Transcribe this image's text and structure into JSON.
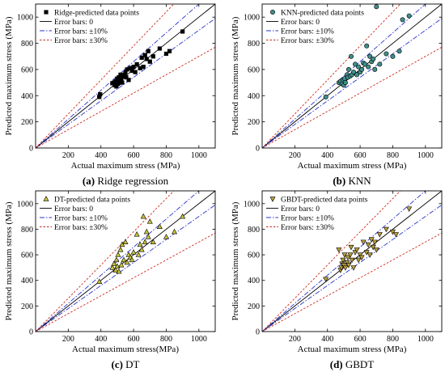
{
  "colors": {
    "scatter_fill": "#000000",
    "knn_fill": "#3f8f8a",
    "dt_fill": "#c8c43a",
    "gbdt_fill": "#b89e38",
    "line_exact": "#000000",
    "line_10": "#2b35c8",
    "line_30": "#cc2a1e"
  },
  "chart_data": [
    {
      "type": "scatter",
      "caption_letter": "(a)",
      "caption_text": " Ridge regression",
      "xlabel": "Actual maximum stress (MPa)",
      "ylabel": "Predicted maximum stress (MPa)",
      "xlim": [
        0,
        1100
      ],
      "ylim": [
        0,
        1100
      ],
      "xticks": [
        200,
        400,
        600,
        800,
        1000
      ],
      "yticks": [
        0,
        200,
        400,
        600,
        800,
        1000
      ],
      "marker": "square",
      "legend": [
        "Ridge-predicted data points",
        "Error bars:  0",
        "Error bars:  ±10%",
        "Error bars:  ±30%"
      ],
      "x": [
        390,
        395,
        470,
        480,
        485,
        490,
        495,
        500,
        500,
        505,
        510,
        515,
        520,
        520,
        525,
        530,
        540,
        545,
        550,
        555,
        560,
        570,
        580,
        590,
        600,
        610,
        620,
        640,
        650,
        660,
        670,
        680,
        690,
        700,
        720,
        760,
        800,
        820,
        900
      ],
      "y": [
        390,
        410,
        495,
        500,
        480,
        510,
        470,
        520,
        530,
        490,
        540,
        500,
        515,
        560,
        530,
        500,
        545,
        560,
        580,
        540,
        600,
        520,
        610,
        590,
        620,
        580,
        640,
        610,
        690,
        620,
        710,
        680,
        740,
        660,
        700,
        760,
        720,
        740,
        890
      ]
    },
    {
      "type": "scatter",
      "caption_letter": "(b)",
      "caption_text": " KNN",
      "xlabel": "Actual maximum stress (MPa)",
      "ylabel": "Predicted maximum stress (MPa)",
      "xlim": [
        0,
        1100
      ],
      "ylim": [
        0,
        1100
      ],
      "xticks": [
        200,
        400,
        600,
        800,
        1000
      ],
      "yticks": [
        0,
        200,
        400,
        600,
        800,
        1000
      ],
      "marker": "circle",
      "legend": [
        "KNN-predicted data points",
        "Error bars:  0",
        "Error bars:  ±10%",
        "Error bars:  ±30%"
      ],
      "x": [
        390,
        470,
        480,
        490,
        495,
        500,
        505,
        510,
        520,
        525,
        530,
        540,
        545,
        550,
        560,
        570,
        580,
        590,
        600,
        610,
        620,
        630,
        640,
        650,
        660,
        670,
        680,
        690,
        700,
        720,
        760,
        800,
        840,
        860,
        900
      ],
      "y": [
        390,
        500,
        510,
        490,
        520,
        480,
        530,
        500,
        560,
        540,
        600,
        550,
        700,
        560,
        580,
        640,
        560,
        620,
        580,
        600,
        650,
        640,
        780,
        620,
        700,
        660,
        680,
        600,
        1080,
        640,
        720,
        700,
        740,
        980,
        1010
      ]
    },
    {
      "type": "scatter",
      "caption_letter": "(c)",
      "caption_text": " DT",
      "xlabel": "Actual maximum stress(MPa)",
      "ylabel": "Predicted maximum stress (MPa)",
      "xlim": [
        0,
        1100
      ],
      "ylim": [
        0,
        1100
      ],
      "xticks": [
        200,
        400,
        600,
        800,
        1000
      ],
      "yticks": [
        0,
        200,
        400,
        600,
        800,
        1000
      ],
      "marker": "triangle-up",
      "legend": [
        "DT-predicted data points",
        "Error bars:  0",
        "Error bars:  ±10%",
        "Error bars:  ±30%"
      ],
      "x": [
        390,
        470,
        480,
        490,
        495,
        500,
        505,
        510,
        520,
        525,
        530,
        540,
        550,
        560,
        570,
        580,
        590,
        600,
        620,
        630,
        640,
        650,
        660,
        670,
        680,
        690,
        700,
        720,
        760,
        800,
        850,
        900
      ],
      "y": [
        390,
        500,
        530,
        480,
        560,
        510,
        600,
        470,
        640,
        520,
        680,
        560,
        700,
        540,
        600,
        580,
        560,
        620,
        760,
        600,
        680,
        640,
        900,
        700,
        780,
        740,
        860,
        700,
        820,
        740,
        780,
        900
      ]
    },
    {
      "type": "scatter",
      "caption_letter": "(d)",
      "caption_text": " GBDT",
      "xlabel": "Actual maximum stress (MPa)",
      "ylabel": "Predicted maximum stress (MPa)",
      "xlim": [
        0,
        1100
      ],
      "ylim": [
        0,
        1100
      ],
      "xticks": [
        200,
        400,
        600,
        800,
        1000
      ],
      "yticks": [
        0,
        200,
        400,
        600,
        800,
        1000
      ],
      "marker": "triangle-down",
      "legend": [
        "GBDT-predicted data points",
        "Error bars:  0",
        "Error bars:  ±10%",
        "Error bars:  ±30%"
      ],
      "x": [
        390,
        470,
        480,
        485,
        490,
        495,
        500,
        505,
        510,
        520,
        525,
        530,
        540,
        545,
        550,
        560,
        570,
        580,
        590,
        600,
        610,
        620,
        640,
        650,
        660,
        670,
        680,
        690,
        700,
        720,
        760,
        800,
        820,
        900
      ],
      "y": [
        410,
        640,
        480,
        500,
        530,
        560,
        520,
        600,
        500,
        540,
        580,
        520,
        600,
        660,
        560,
        500,
        620,
        640,
        560,
        600,
        580,
        700,
        620,
        680,
        600,
        720,
        660,
        700,
        640,
        760,
        800,
        780,
        760,
        960
      ]
    }
  ]
}
